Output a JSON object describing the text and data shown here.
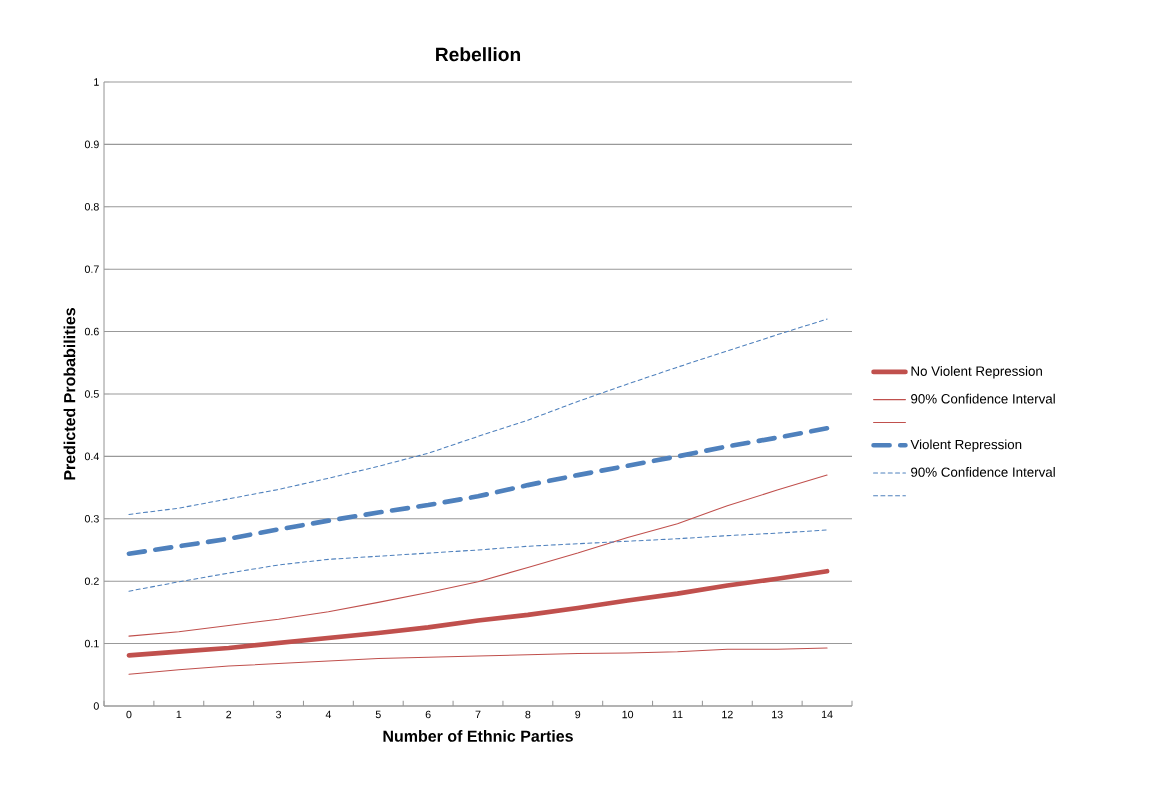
{
  "chart_data": {
    "type": "line",
    "title": "Rebellion",
    "xlabel": "Number of Ethnic Parties",
    "ylabel": "Predicted Probabilities",
    "categories": [
      "0",
      "1",
      "2",
      "3",
      "4",
      "5",
      "6",
      "7",
      "8",
      "9",
      "10",
      "11",
      "12",
      "13",
      "14"
    ],
    "ylim": [
      0,
      1
    ],
    "yticks": [
      0,
      0.1,
      0.2,
      0.3,
      0.4,
      0.5,
      0.6,
      0.7,
      0.8,
      0.9,
      1
    ],
    "grid": "y",
    "legend": "right",
    "marker": "none",
    "series": [
      {
        "name": "No Violent Repression",
        "color": "#c0504d",
        "line_style": "solid",
        "values": [
          0.081,
          0.087,
          0.093,
          0.101,
          0.109,
          0.117,
          0.126,
          0.137,
          0.146,
          0.157,
          0.169,
          0.18,
          0.193,
          0.204,
          0.216
        ]
      },
      {
        "name": "90% Confidence Interval",
        "color": "#c0504d",
        "line_style": "solid",
        "values": [
          0.112,
          0.119,
          0.129,
          0.139,
          0.151,
          0.166,
          0.182,
          0.199,
          0.222,
          0.245,
          0.27,
          0.292,
          0.321,
          0.346,
          0.37
        ]
      },
      {
        "color": "#c0504d",
        "line_style": "solid",
        "values": [
          0.051,
          0.058,
          0.064,
          0.068,
          0.072,
          0.076,
          0.078,
          0.08,
          0.082,
          0.084,
          0.085,
          0.087,
          0.091,
          0.091,
          0.093
        ]
      },
      {
        "name": "Violent Repression",
        "color": "#4f81bd",
        "line_style": "dashed",
        "values": [
          0.244,
          0.256,
          0.268,
          0.283,
          0.297,
          0.31,
          0.322,
          0.336,
          0.354,
          0.37,
          0.385,
          0.4,
          0.416,
          0.43,
          0.445
        ]
      },
      {
        "name": "90% Confidence Interval",
        "color": "#4f81bd",
        "line_style": "dashed",
        "values": [
          0.307,
          0.317,
          0.332,
          0.347,
          0.365,
          0.384,
          0.405,
          0.432,
          0.458,
          0.488,
          0.516,
          0.543,
          0.569,
          0.595,
          0.62
        ]
      },
      {
        "color": "#4f81bd",
        "line_style": "dashed",
        "values": [
          0.184,
          0.199,
          0.213,
          0.226,
          0.235,
          0.24,
          0.245,
          0.25,
          0.256,
          0.26,
          0.264,
          0.268,
          0.273,
          0.277,
          0.282
        ]
      }
    ]
  }
}
